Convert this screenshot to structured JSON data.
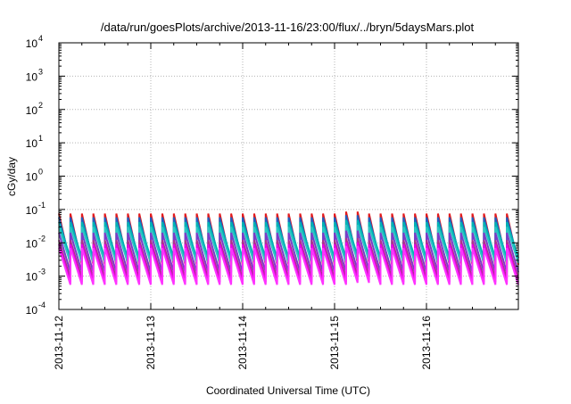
{
  "chart_data": {
    "type": "line",
    "title": "/data/run/goesPlots/archive/2013-11-16/23:00/flux/../bryn/5daysMars.plot",
    "xlabel": "Coordinated Universal Time (UTC)",
    "ylabel": "cGy/day",
    "yscale": "log",
    "ylim": [
      0.0001,
      10000
    ],
    "y_ticks": [
      {
        "base": "10",
        "exp": "-4",
        "value": 0.0001
      },
      {
        "base": "10",
        "exp": "-3",
        "value": 0.001
      },
      {
        "base": "10",
        "exp": "-2",
        "value": 0.01
      },
      {
        "base": "10",
        "exp": "-1",
        "value": 0.1
      },
      {
        "base": "10",
        "exp": "0",
        "value": 1
      },
      {
        "base": "10",
        "exp": "1",
        "value": 10
      },
      {
        "base": "10",
        "exp": "2",
        "value": 100
      },
      {
        "base": "10",
        "exp": "3",
        "value": 1000
      },
      {
        "base": "10",
        "exp": "4",
        "value": 10000
      }
    ],
    "xlim": [
      "2013-11-12",
      "2013-11-17"
    ],
    "x_ticks": [
      "2013-11-12",
      "2013-11-13",
      "2013-11-14",
      "2013-11-15",
      "2013-11-16"
    ],
    "grid": true,
    "legend": "none",
    "sawtooth": {
      "period_hours": 3,
      "spike_cycles": [
        25,
        26
      ]
    },
    "series": [
      {
        "color": "#e31a1c",
        "peak": 0.075,
        "trough": 0.0022
      },
      {
        "color": "#1f5fbf",
        "peak": 0.058,
        "trough": 0.0028
      },
      {
        "color": "#00b4b4",
        "peak": 0.042,
        "trough": 0.0035
      },
      {
        "color": "#2ec4c4",
        "peak": 0.03,
        "trough": 0.0025
      },
      {
        "color": "#7a3cc7",
        "peak": 0.02,
        "trough": 0.0013
      },
      {
        "color": "#b03090",
        "peak": 0.012,
        "trough": 0.00085
      },
      {
        "color": "#e800e8",
        "peak": 0.009,
        "trough": 0.00065
      },
      {
        "color": "#ff33ff",
        "peak": 0.007,
        "trough": 0.00055
      }
    ]
  }
}
